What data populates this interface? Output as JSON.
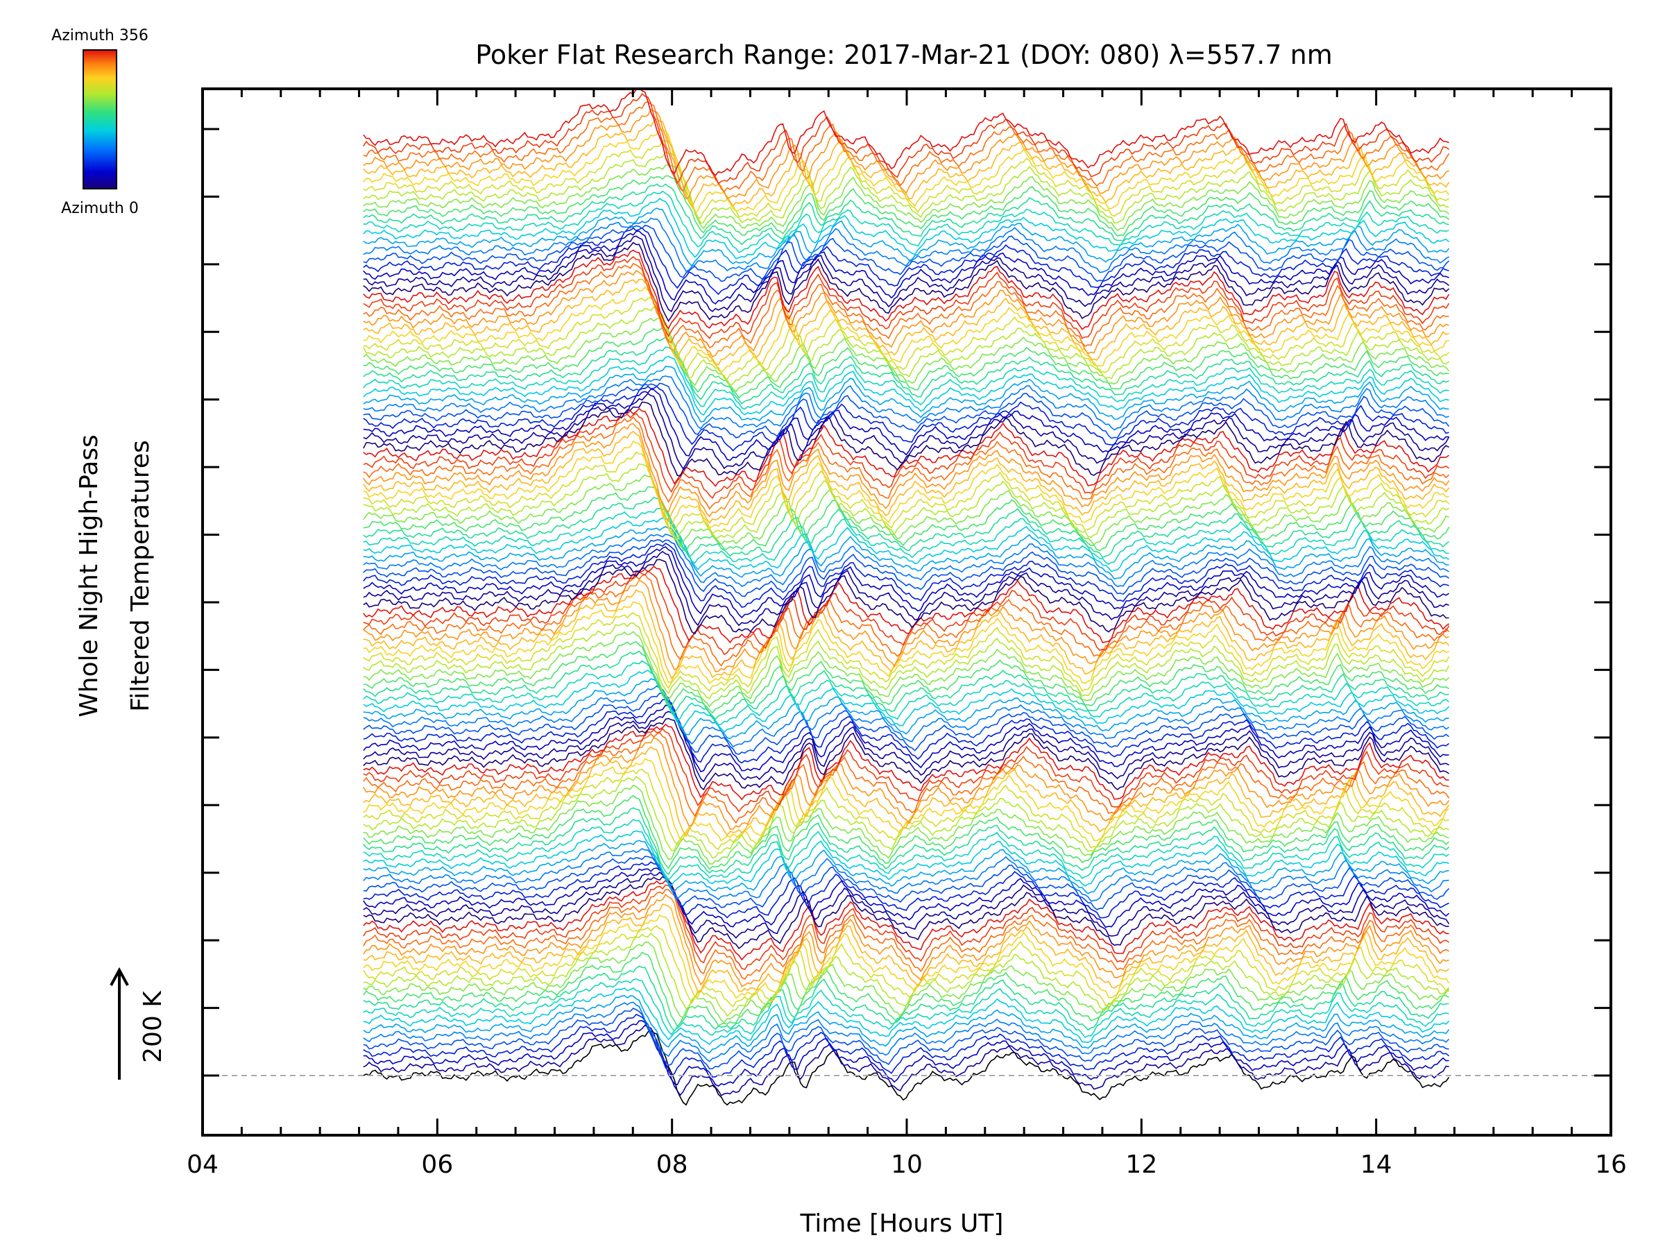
{
  "chart_data": {
    "type": "line",
    "title": "Poker Flat Research Range: 2017-Mar-21 (DOY: 080) λ=557.7 nm",
    "xlabel": "Time [Hours UT]",
    "ylabel_line1": "Whole Night High-Pass",
    "ylabel_line2": "Filtered Temperatures",
    "scale_label": "200 K",
    "xlim": [
      4,
      16
    ],
    "x_ticks": [
      "04",
      "06",
      "08",
      "10",
      "12",
      "14",
      "16"
    ],
    "x_tick_values": [
      4,
      6,
      8,
      10,
      12,
      14,
      16
    ],
    "time_range": [
      5.37,
      14.63
    ],
    "stacked_traces": 120,
    "y_major_ticks": 15,
    "colorbar": {
      "top_label": "Azimuth 356",
      "bottom_label": "Azimuth 0",
      "colormap": "rainbow",
      "colors": [
        "#1a0078",
        "#0000d0",
        "#0070ff",
        "#00d0e0",
        "#30e080",
        "#b0e830",
        "#ffd020",
        "#ff8010",
        "#e01010"
      ]
    },
    "baseline_style": "dashed-gray",
    "features": {
      "warm_events_hours": [
        7.4,
        7.85,
        9.05,
        9.4,
        10.9,
        12.6,
        12.75,
        13.8,
        14.15
      ],
      "cold_events_hours": [
        8.05,
        8.5,
        8.8,
        10.0,
        11.7,
        13.1
      ]
    }
  }
}
